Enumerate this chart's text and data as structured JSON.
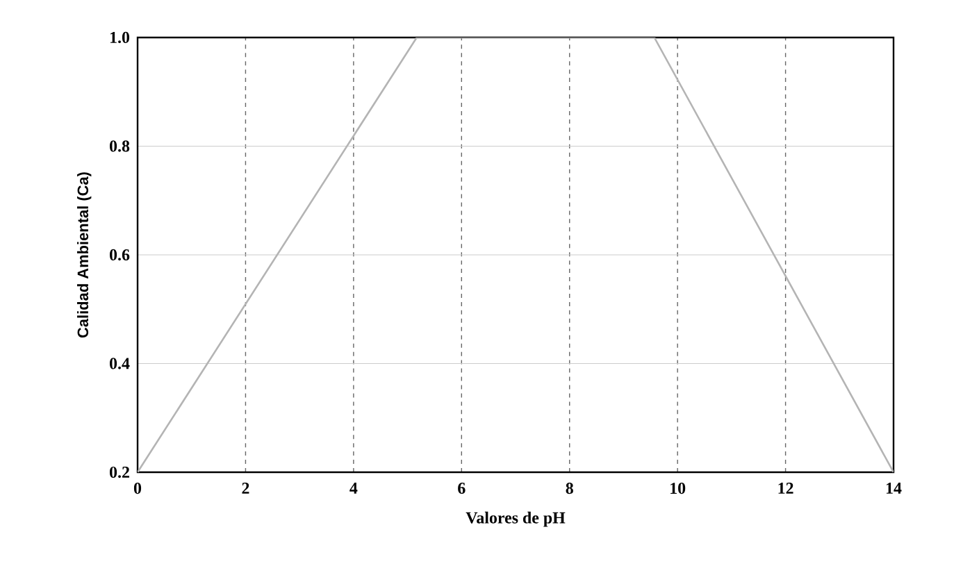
{
  "chart_data": {
    "type": "line",
    "xlabel": "Valores de pH",
    "ylabel": "Calidad Ambiental (Ca)",
    "x": [
      0,
      5.17,
      9.57,
      14
    ],
    "series": [
      {
        "color": "#b4b4b4",
        "values": [
          0.2,
          1.0,
          1.0,
          0.2
        ]
      }
    ],
    "xlim": [
      0,
      14
    ],
    "xticks": [
      0,
      2,
      4,
      6,
      8,
      10,
      12,
      14
    ],
    "ylim": [
      0.2,
      1.0
    ],
    "yticks": [
      0.2,
      0.4,
      0.6,
      0.8,
      {
        "value": 1.0,
        "label": "1.0"
      }
    ],
    "grid": true,
    "marker": "none",
    "line_style": "solid"
  }
}
